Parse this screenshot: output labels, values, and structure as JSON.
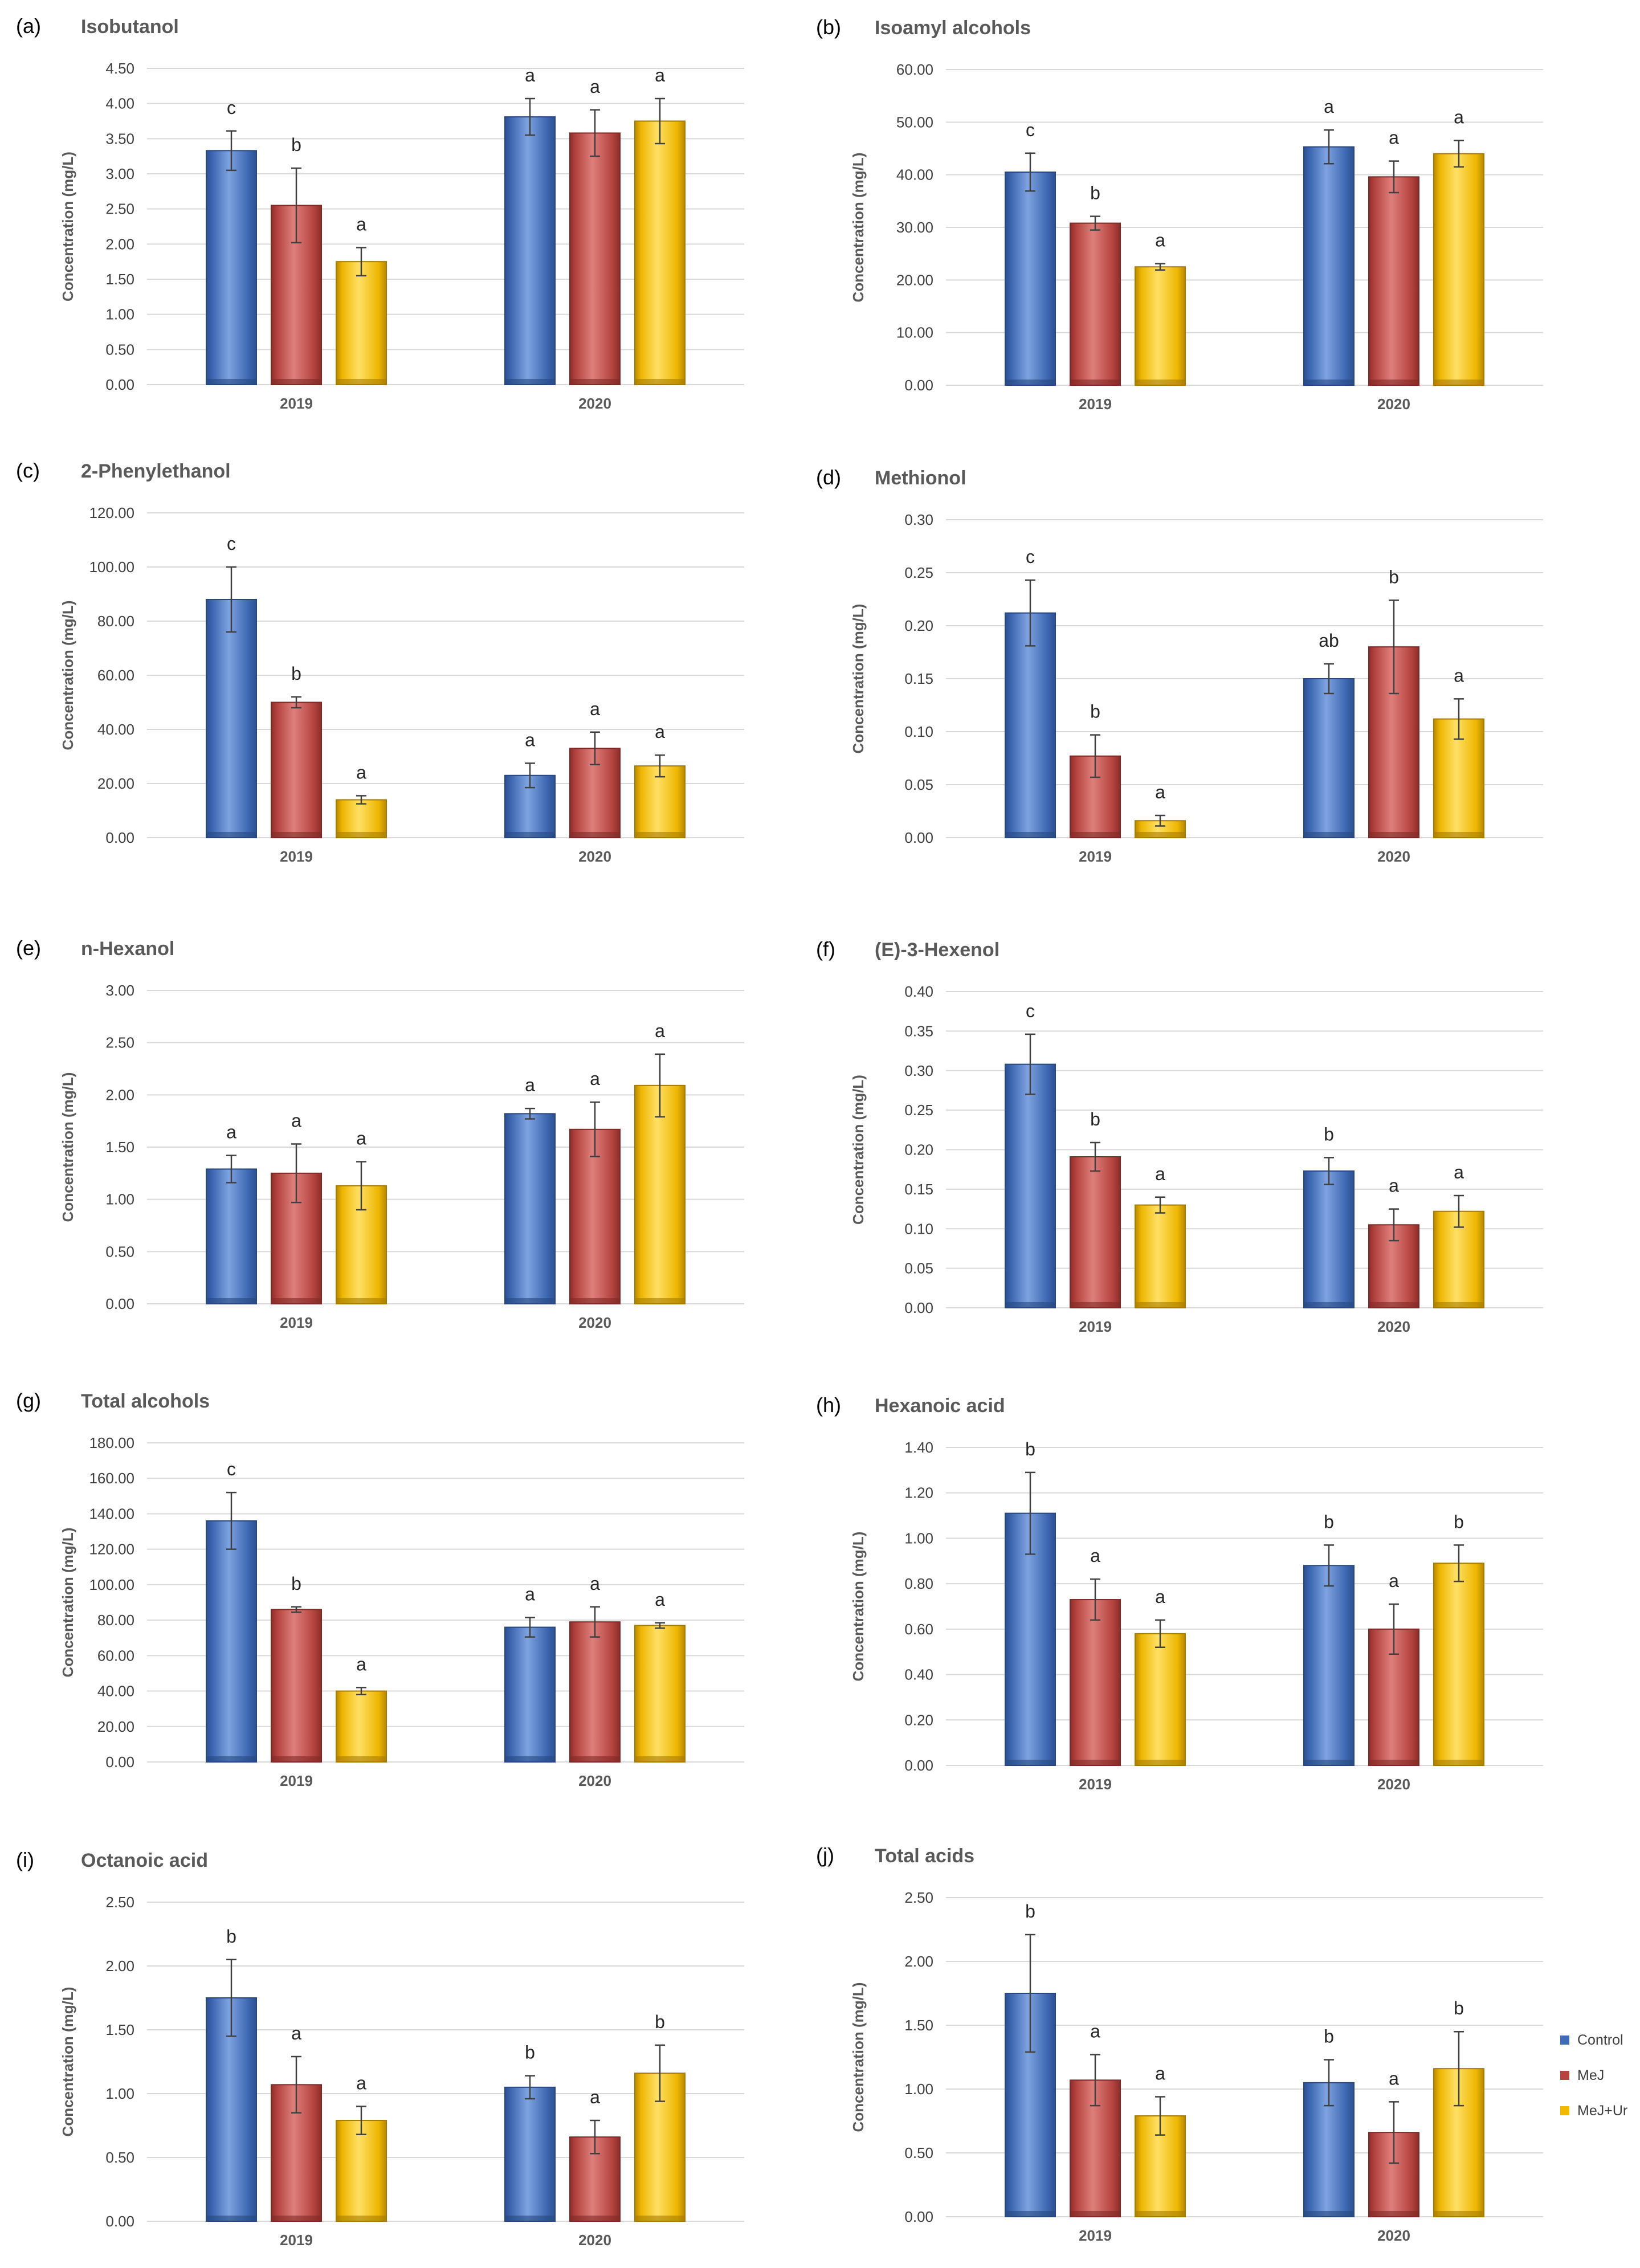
{
  "figure": {
    "panel_order": [
      "a",
      "b",
      "c",
      "d",
      "e",
      "f",
      "g",
      "h",
      "i",
      "j"
    ],
    "ylabel": "Concentration (mg/L)",
    "legend": [
      {
        "name": "Control",
        "color": "#4472C4"
      },
      {
        "name": "MeJ",
        "color": "#C0504D"
      },
      {
        "name": "MeJ+Ur",
        "color": "#FFC000"
      }
    ]
  },
  "chart_data": [
    {
      "panel": "(a)",
      "type": "bar",
      "title": "Isobutanol",
      "xlabel": "",
      "ylabel": "Concentration (mg/L)",
      "categories": [
        "2019",
        "2020"
      ],
      "ylim": [
        0,
        4.5
      ],
      "yticks": [
        "0.00",
        "0.50",
        "1.00",
        "1.50",
        "2.00",
        "2.50",
        "3.00",
        "3.50",
        "4.00",
        "4.50"
      ],
      "series": [
        {
          "name": "Control",
          "values": [
            3.33,
            3.81
          ],
          "errors": [
            0.28,
            0.26
          ],
          "letters": [
            "c",
            "a"
          ]
        },
        {
          "name": "MeJ",
          "values": [
            2.55,
            3.58
          ],
          "errors": [
            0.53,
            0.33
          ],
          "letters": [
            "b",
            "a"
          ]
        },
        {
          "name": "MeJ+Ur",
          "values": [
            1.75,
            3.75
          ],
          "errors": [
            0.2,
            0.32
          ],
          "letters": [
            "a",
            "a"
          ]
        }
      ]
    },
    {
      "panel": "(b)",
      "type": "bar",
      "title": "Isoamyl alcohols",
      "xlabel": "",
      "ylabel": "Concentration (mg/L)",
      "categories": [
        "2019",
        "2020"
      ],
      "ylim": [
        0,
        60
      ],
      "yticks": [
        "0.00",
        "10.00",
        "20.00",
        "30.00",
        "40.00",
        "50.00",
        "60.00"
      ],
      "series": [
        {
          "name": "Control",
          "values": [
            40.5,
            45.3
          ],
          "errors": [
            3.6,
            3.2
          ],
          "letters": [
            "c",
            "a"
          ]
        },
        {
          "name": "MeJ",
          "values": [
            30.8,
            39.6
          ],
          "errors": [
            1.3,
            3.0
          ],
          "letters": [
            "b",
            "a"
          ]
        },
        {
          "name": "MeJ+Ur",
          "values": [
            22.5,
            44.0
          ],
          "errors": [
            0.6,
            2.5
          ],
          "letters": [
            "a",
            "a"
          ]
        }
      ]
    },
    {
      "panel": "(c)",
      "type": "bar",
      "title": "2-Phenylethanol",
      "xlabel": "",
      "ylabel": "Concentration (mg/L)",
      "categories": [
        "2019",
        "2020"
      ],
      "ylim": [
        0,
        120
      ],
      "yticks": [
        "0.00",
        "20.00",
        "40.00",
        "60.00",
        "80.00",
        "100.00",
        "120.00"
      ],
      "series": [
        {
          "name": "Control",
          "values": [
            88.0,
            23.0
          ],
          "errors": [
            12.0,
            4.5
          ],
          "letters": [
            "c",
            "a"
          ]
        },
        {
          "name": "MeJ",
          "values": [
            50.0,
            33.0
          ],
          "errors": [
            2.0,
            6.0
          ],
          "letters": [
            "b",
            "a"
          ]
        },
        {
          "name": "MeJ+Ur",
          "values": [
            14.0,
            26.5
          ],
          "errors": [
            1.5,
            4.0
          ],
          "letters": [
            "a",
            "a"
          ]
        }
      ]
    },
    {
      "panel": "(d)",
      "type": "bar",
      "title": "Methionol",
      "xlabel": "",
      "ylabel": "Concentration (mg/L)",
      "categories": [
        "2019",
        "2020"
      ],
      "ylim": [
        0,
        0.3
      ],
      "yticks": [
        "0.00",
        "0.05",
        "0.10",
        "0.15",
        "0.20",
        "0.25",
        "0.30"
      ],
      "series": [
        {
          "name": "Control",
          "values": [
            0.212,
            0.15
          ],
          "errors": [
            0.031,
            0.014
          ],
          "letters": [
            "c",
            "ab"
          ]
        },
        {
          "name": "MeJ",
          "values": [
            0.077,
            0.18
          ],
          "errors": [
            0.02,
            0.044
          ],
          "letters": [
            "b",
            "b"
          ]
        },
        {
          "name": "MeJ+Ur",
          "values": [
            0.016,
            0.112
          ],
          "errors": [
            0.005,
            0.019
          ],
          "letters": [
            "a",
            "a"
          ]
        }
      ]
    },
    {
      "panel": "(e)",
      "type": "bar",
      "title": "n-Hexanol",
      "xlabel": "",
      "ylabel": "Concentration (mg/L)",
      "categories": [
        "2019",
        "2020"
      ],
      "ylim": [
        0,
        3.0
      ],
      "yticks": [
        "0.00",
        "0.50",
        "1.00",
        "1.50",
        "2.00",
        "2.50",
        "3.00"
      ],
      "series": [
        {
          "name": "Control",
          "values": [
            1.29,
            1.82
          ],
          "errors": [
            0.13,
            0.05
          ],
          "letters": [
            "a",
            "a"
          ]
        },
        {
          "name": "MeJ",
          "values": [
            1.25,
            1.67
          ],
          "errors": [
            0.28,
            0.26
          ],
          "letters": [
            "a",
            "a"
          ]
        },
        {
          "name": "MeJ+Ur",
          "values": [
            1.13,
            2.09
          ],
          "errors": [
            0.23,
            0.3
          ],
          "letters": [
            "a",
            "a"
          ]
        }
      ]
    },
    {
      "panel": "(f)",
      "type": "bar",
      "title": "(E)-3-Hexenol",
      "xlabel": "",
      "ylabel": "Concentration (mg/L)",
      "categories": [
        "2019",
        "2020"
      ],
      "ylim": [
        0,
        0.4
      ],
      "yticks": [
        "0.00",
        "0.05",
        "0.10",
        "0.15",
        "0.20",
        "0.25",
        "0.30",
        "0.35",
        "0.40"
      ],
      "series": [
        {
          "name": "Control",
          "values": [
            0.308,
            0.173
          ],
          "errors": [
            0.038,
            0.017
          ],
          "letters": [
            "c",
            "b"
          ]
        },
        {
          "name": "MeJ",
          "values": [
            0.191,
            0.105
          ],
          "errors": [
            0.018,
            0.02
          ],
          "letters": [
            "b",
            "a"
          ]
        },
        {
          "name": "MeJ+Ur",
          "values": [
            0.13,
            0.122
          ],
          "errors": [
            0.01,
            0.02
          ],
          "letters": [
            "a",
            "a"
          ]
        }
      ]
    },
    {
      "panel": "(g)",
      "type": "bar",
      "title": "Total alcohols",
      "xlabel": "",
      "ylabel": "Concentration (mg/L)",
      "categories": [
        "2019",
        "2020"
      ],
      "ylim": [
        0,
        180
      ],
      "yticks": [
        "0.00",
        "20.00",
        "40.00",
        "60.00",
        "80.00",
        "100.00",
        "120.00",
        "140.00",
        "160.00",
        "180.00"
      ],
      "series": [
        {
          "name": "Control",
          "values": [
            136.0,
            76.0
          ],
          "errors": [
            16.0,
            5.5
          ],
          "letters": [
            "c",
            "a"
          ]
        },
        {
          "name": "MeJ",
          "values": [
            86.0,
            79.0
          ],
          "errors": [
            1.5,
            8.5
          ],
          "letters": [
            "b",
            "a"
          ]
        },
        {
          "name": "MeJ+Ur",
          "values": [
            40.0,
            77.0
          ],
          "errors": [
            2.0,
            1.5
          ],
          "letters": [
            "a",
            "a"
          ]
        }
      ]
    },
    {
      "panel": "(h)",
      "type": "bar",
      "title": "Hexanoic acid",
      "xlabel": "",
      "ylabel": "Concentration (mg/L)",
      "categories": [
        "2019",
        "2020"
      ],
      "ylim": [
        0,
        1.4
      ],
      "yticks": [
        "0.00",
        "0.20",
        "0.40",
        "0.60",
        "0.80",
        "1.00",
        "1.20",
        "1.40"
      ],
      "series": [
        {
          "name": "Control",
          "values": [
            1.11,
            0.88
          ],
          "errors": [
            0.18,
            0.09
          ],
          "letters": [
            "b",
            "b"
          ]
        },
        {
          "name": "MeJ",
          "values": [
            0.73,
            0.6
          ],
          "errors": [
            0.09,
            0.11
          ],
          "letters": [
            "a",
            "a"
          ]
        },
        {
          "name": "MeJ+Ur",
          "values": [
            0.58,
            0.89
          ],
          "errors": [
            0.06,
            0.08
          ],
          "letters": [
            "a",
            "b"
          ]
        }
      ]
    },
    {
      "panel": "(i)",
      "type": "bar",
      "title": "Octanoic acid",
      "xlabel": "",
      "ylabel": "Concentration (mg/L)",
      "categories": [
        "2019",
        "2020"
      ],
      "ylim": [
        0,
        2.5
      ],
      "yticks": [
        "0.00",
        "0.50",
        "1.00",
        "1.50",
        "2.00",
        "2.50"
      ],
      "series": [
        {
          "name": "Control",
          "values": [
            1.75,
            1.05
          ],
          "errors": [
            0.3,
            0.09
          ],
          "letters": [
            "b",
            "b"
          ]
        },
        {
          "name": "MeJ",
          "values": [
            1.07,
            0.66
          ],
          "errors": [
            0.22,
            0.13
          ],
          "letters": [
            "a",
            "a"
          ]
        },
        {
          "name": "MeJ+Ur",
          "values": [
            0.79,
            1.16
          ],
          "errors": [
            0.11,
            0.22
          ],
          "letters": [
            "a",
            "b"
          ]
        }
      ]
    },
    {
      "panel": "(j)",
      "type": "bar",
      "title": "Total acids",
      "xlabel": "",
      "ylabel": "Concentration (mg/L)",
      "categories": [
        "2019",
        "2020"
      ],
      "ylim": [
        0,
        2.5
      ],
      "yticks": [
        "0.00",
        "0.50",
        "1.00",
        "1.50",
        "2.00",
        "2.50"
      ],
      "series": [
        {
          "name": "Control",
          "values": [
            1.75,
            1.05
          ],
          "errors": [
            0.46,
            0.18
          ],
          "letters": [
            "b",
            "b"
          ]
        },
        {
          "name": "MeJ",
          "values": [
            1.07,
            0.66
          ],
          "errors": [
            0.2,
            0.24
          ],
          "letters": [
            "a",
            "a"
          ]
        },
        {
          "name": "MeJ+Ur",
          "values": [
            0.79,
            1.16
          ],
          "errors": [
            0.15,
            0.29
          ],
          "letters": [
            "a",
            "b"
          ]
        }
      ]
    }
  ]
}
